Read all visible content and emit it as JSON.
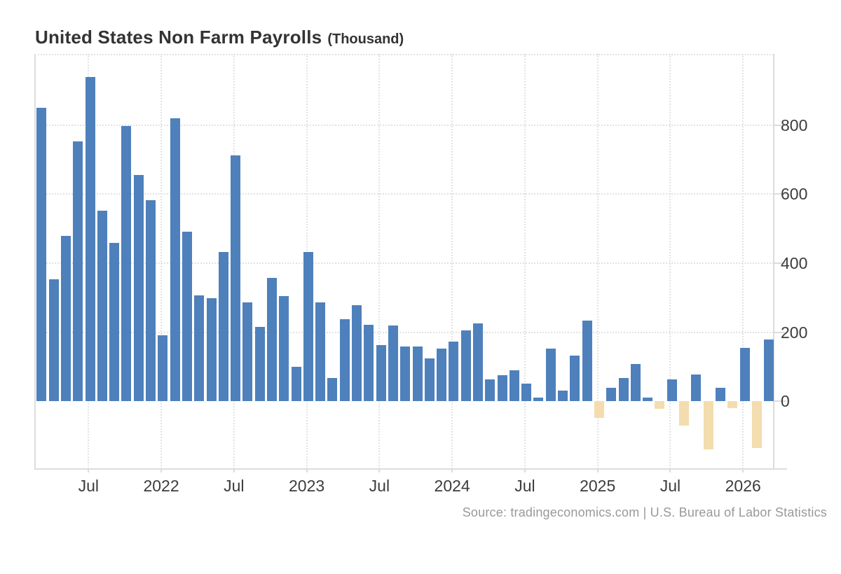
{
  "title": {
    "main": "United States Non Farm Payrolls",
    "unit": "(Thousand)"
  },
  "source_text": "Source: tradingeconomics.com | U.S. Bureau of Labor Statistics",
  "chart_data": {
    "type": "bar",
    "title": "United States Non Farm Payrolls",
    "unit": "Thousand",
    "categories": [
      "Mar 2021",
      "Apr 2021",
      "May 2021",
      "Jun 2021",
      "Jul 2021",
      "Aug 2021",
      "Sep 2021",
      "Oct 2021",
      "Nov 2021",
      "Dec 2021",
      "Jan 2022",
      "Feb 2022",
      "Mar 2022",
      "Apr 2022",
      "May 2022",
      "Jun 2022",
      "Jul 2022",
      "Aug 2022",
      "Sep 2022",
      "Oct 2022",
      "Nov 2022",
      "Dec 2022",
      "Jan 2023",
      "Feb 2023",
      "Mar 2023",
      "Apr 2023",
      "May 2023",
      "Jun 2023",
      "Jul 2023",
      "Aug 2023",
      "Sep 2023",
      "Oct 2023",
      "Nov 2023",
      "Dec 2023",
      "Jan 2024",
      "Feb 2024",
      "Mar 2024",
      "Apr 2024",
      "May 2024",
      "Jun 2024",
      "Jul 2024",
      "Aug 2024",
      "Sep 2024",
      "Oct 2024",
      "Nov 2024",
      "Dec 2024",
      "Jan 2025",
      "Feb 2025",
      "Mar 2025",
      "Apr 2025",
      "May 2025",
      "Jun 2025",
      "Jul 2025",
      "Aug 2025",
      "Sep 2025",
      "Oct 2025",
      "Nov 2025",
      "Dec 2025",
      "Jan 2026",
      "Feb 2026",
      "Mar 2026"
    ],
    "values": [
      850,
      353,
      479,
      753,
      939,
      551,
      459,
      798,
      656,
      583,
      191,
      819,
      491,
      307,
      298,
      432,
      713,
      287,
      216,
      357,
      304,
      99,
      432,
      287,
      68,
      238,
      278,
      222,
      162,
      219,
      159,
      159,
      125,
      152,
      173,
      205,
      226,
      64,
      76,
      89,
      52,
      11,
      153,
      32,
      132,
      233,
      -48,
      39,
      68,
      109,
      10,
      -22,
      63,
      -70,
      77,
      -139,
      39,
      -19,
      155,
      -135,
      180
    ],
    "y_ticks": [
      0,
      200,
      400,
      600,
      800
    ],
    "ylim": [
      -196,
      1006
    ],
    "x_ticks": [
      {
        "index": 4,
        "label": "Jul"
      },
      {
        "index": 10,
        "label": "2022"
      },
      {
        "index": 16,
        "label": "Jul"
      },
      {
        "index": 22,
        "label": "2023"
      },
      {
        "index": 28,
        "label": "Jul"
      },
      {
        "index": 34,
        "label": "2024"
      },
      {
        "index": 40,
        "label": "Jul"
      },
      {
        "index": 46,
        "label": "2025"
      },
      {
        "index": 52,
        "label": "Jul"
      },
      {
        "index": 58,
        "label": "2026"
      }
    ],
    "grid": "dotted",
    "legend": "none",
    "colors": {
      "positive": "#4e80bc",
      "negative": "#f3ddae",
      "grid": "#e2e2e2",
      "axis": "#dcdcdc",
      "axis_text": "#3c3c3c",
      "title_text": "#333333",
      "source_text": "#999999"
    }
  }
}
